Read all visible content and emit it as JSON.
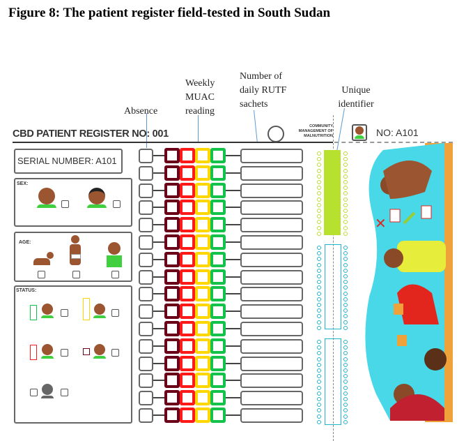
{
  "figure_title": "Figure 8: The patient register field-tested in South Sudan",
  "annotations": {
    "absence": "Absence",
    "muac": "Weekly MUAC reading",
    "rutf": "Number of daily RUTF sachets",
    "identifier": "Unique identifier"
  },
  "register": {
    "title": "CBD PATIENT REGISTER NO: 001",
    "logo_text": "COMMUNITY MANAGEMENT OF MALNUTRITION",
    "no_label": "NO:  A101",
    "serial_label": "SERIAL NUMBER:  A101",
    "sex_label": "SEX:",
    "age_label": "AGE:",
    "status_label": "STATUS:",
    "row_count": 16,
    "muac_colors": [
      "#6b0019",
      "#ff1a1a",
      "#ffd700",
      "#13c24a"
    ],
    "id_colors": {
      "green": "#b8e02e",
      "cyan": "#1fb6c9"
    }
  }
}
